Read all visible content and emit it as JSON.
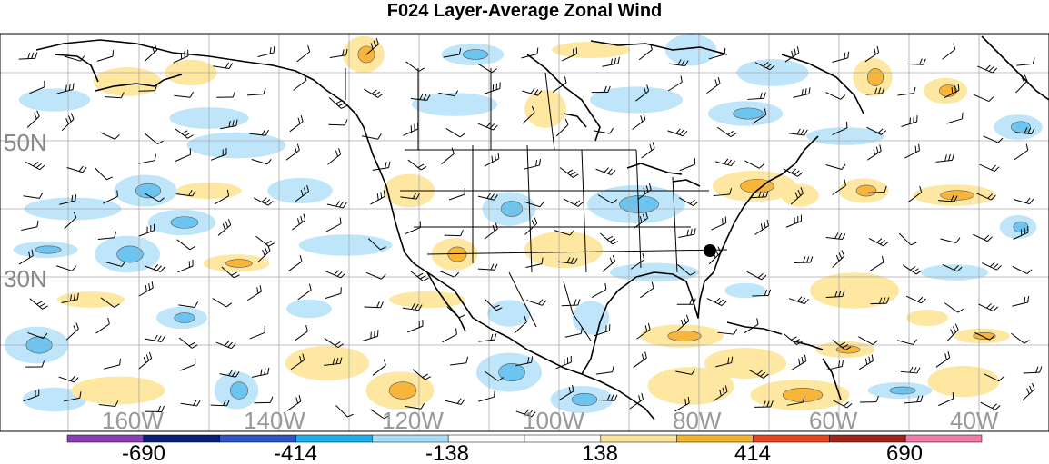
{
  "title": "F024 Layer-Average Zonal Wind",
  "lat_labels": [
    "50N",
    "30N"
  ],
  "lon_labels": [
    "160W",
    "140W",
    "120W",
    "100W",
    "80W",
    "60W",
    "40W"
  ],
  "colorbar": {
    "labels": [
      "-690",
      "-414",
      "-138",
      "138",
      "414",
      "690"
    ],
    "colors": [
      "#8a3fb8",
      "#0a1f7a",
      "#2e54c6",
      "#1ab0ee",
      "#a9dcf7",
      "#ffffff",
      "#ffffff",
      "#fbe39a",
      "#f6b42b",
      "#e8451c",
      "#a3231b",
      "#f27aa6"
    ]
  },
  "shading": {
    "positive_light": "#fde7a1",
    "positive_mid": "#f7b53a",
    "positive_dark": "#e9781e",
    "negative_light": "#bfe5fa",
    "negative_mid": "#6cc5f0",
    "negative_dark": "#1aa2e6"
  },
  "marker_color": "#000000"
}
